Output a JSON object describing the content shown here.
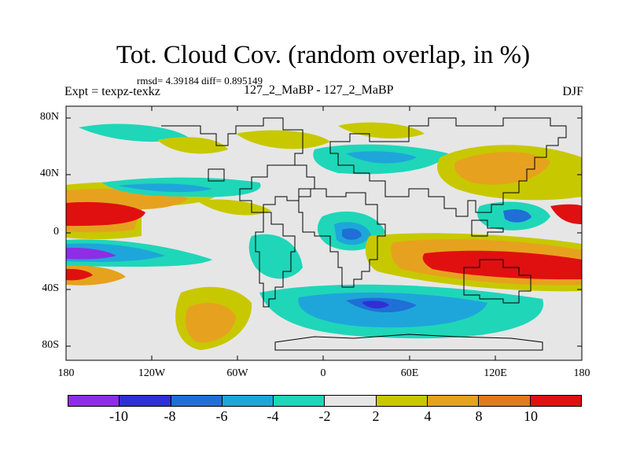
{
  "title": "Tot. Cloud Cov. (random overlap, in %)",
  "stats": "rmsd= 4.39184 diff= 0.895149",
  "experiment": "Expt = texpz-texkz",
  "comparison": "127_2_MaBP - 127_2_MaBP",
  "season": "DJF",
  "lat_ticks": [
    "80N",
    "40N",
    "0",
    "40S",
    "80S"
  ],
  "lon_ticks": [
    "180",
    "120W",
    "60W",
    "0",
    "60E",
    "120E",
    "180"
  ],
  "colorbar": {
    "levels": [
      "-10",
      "-8",
      "-6",
      "-4",
      "-2",
      "2",
      "4",
      "8",
      "10"
    ],
    "colors": [
      "#8d2de6",
      "#2f2fd6",
      "#1f6fd6",
      "#1ea6da",
      "#1fd6b8",
      "#e6e6e6",
      "#c8c800",
      "#e6a21e",
      "#e07a1e",
      "#e01010"
    ]
  }
}
